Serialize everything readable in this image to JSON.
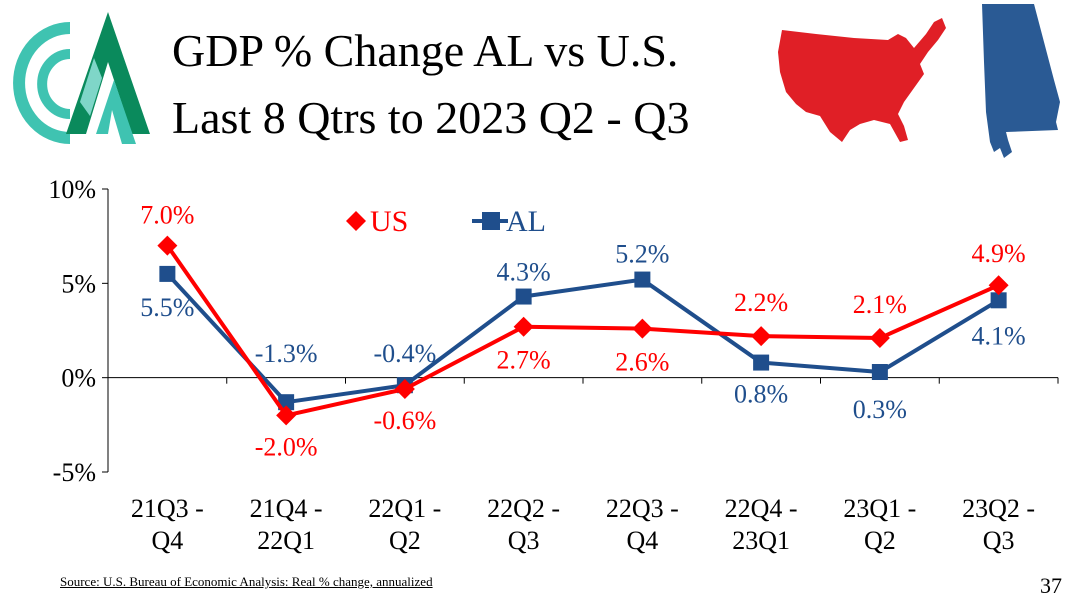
{
  "header": {
    "title_line1": "GDP % Change AL vs U.S.",
    "title_line2": "Last 8 Qtrs to 2023 Q2 - Q3"
  },
  "logo": {
    "name": "company-logo"
  },
  "maps": {
    "us_color": "#e01f26",
    "al_color": "#2a5a94"
  },
  "chart_data": {
    "type": "line",
    "title": "GDP % Change AL vs U.S. Last 8 Qtrs to 2023 Q2 - Q3",
    "categories": [
      [
        "21Q3 -",
        "Q4"
      ],
      [
        "21Q4 -",
        "22Q1"
      ],
      [
        "22Q1 -",
        "Q2"
      ],
      [
        "22Q2 -",
        "Q3"
      ],
      [
        "22Q3 -",
        "Q4"
      ],
      [
        "22Q4 -",
        "23Q1"
      ],
      [
        "23Q1 -",
        "Q2"
      ],
      [
        "23Q2 -",
        "Q3"
      ]
    ],
    "series": [
      {
        "name": "US",
        "color": "#ff0000",
        "marker": "diamond",
        "values": [
          7.0,
          -2.0,
          -0.6,
          2.7,
          2.6,
          2.2,
          2.1,
          4.9
        ],
        "labels": [
          "7.0%",
          "-2.0%",
          "-0.6%",
          "2.7%",
          "2.6%",
          "2.2%",
          "2.1%",
          "4.9%"
        ]
      },
      {
        "name": "AL",
        "color": "#1f4e8c",
        "marker": "square",
        "values": [
          5.5,
          -1.3,
          -0.4,
          4.3,
          5.2,
          0.8,
          0.3,
          4.1
        ],
        "labels": [
          "5.5%",
          "-1.3%",
          "-0.4%",
          "4.3%",
          "5.2%",
          "0.8%",
          "0.3%",
          "4.1%"
        ]
      }
    ],
    "ylim": [
      -5,
      10
    ],
    "yticks": [
      10,
      5,
      0,
      -5
    ],
    "ytick_labels": [
      "10%",
      "5%",
      "0%",
      "-5%"
    ],
    "xlabel": "",
    "ylabel": "",
    "legend": {
      "position": "top-center",
      "entries": [
        "US",
        "AL"
      ]
    }
  },
  "footer": {
    "source": "Source: U.S. Bureau of Economic Analysis: Real % change, annualized",
    "page_number": "37"
  }
}
